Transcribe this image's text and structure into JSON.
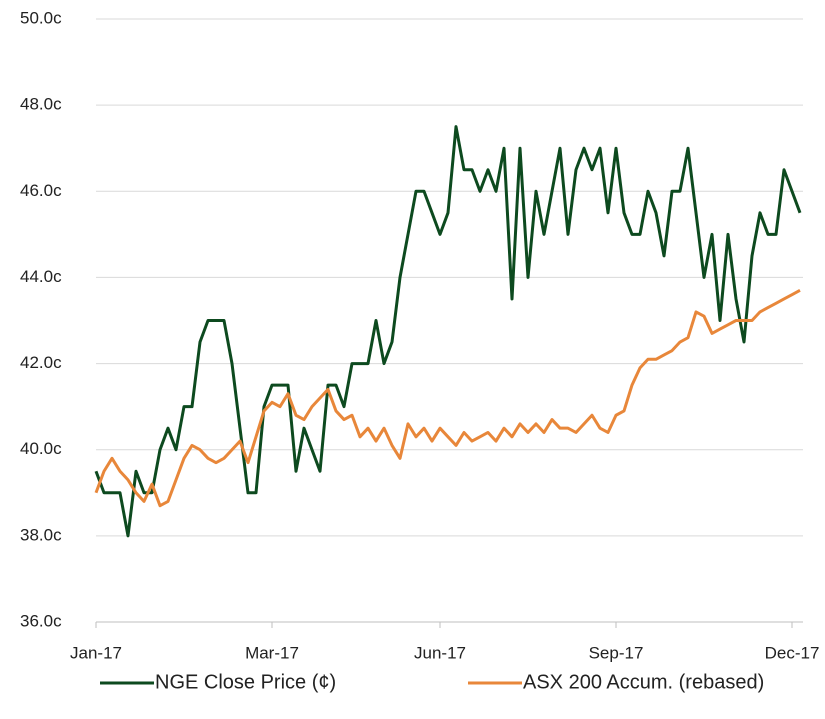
{
  "chart_data": {
    "type": "line",
    "categories": [
      "Jan-17",
      null,
      null,
      null,
      null,
      null,
      null,
      null,
      null,
      null,
      null,
      null,
      null,
      null,
      null,
      null,
      null,
      null,
      null,
      null,
      null,
      null,
      "Mar-17",
      null,
      null,
      null,
      null,
      null,
      null,
      null,
      null,
      null,
      null,
      null,
      null,
      null,
      null,
      null,
      null,
      null,
      null,
      null,
      null,
      "Jun-17",
      null,
      null,
      null,
      null,
      null,
      null,
      null,
      null,
      null,
      null,
      null,
      null,
      null,
      null,
      null,
      null,
      null,
      null,
      null,
      null,
      null,
      "Sep-17",
      null,
      null,
      null,
      null,
      null,
      null,
      null,
      null,
      null,
      null,
      null,
      null,
      null,
      null,
      null,
      null,
      null,
      null,
      null,
      null,
      null,
      "Dec-17",
      null
    ],
    "series": [
      {
        "name": "NGE Close Price (¢)",
        "color": "#0d4a1f",
        "values": [
          39.5,
          39.0,
          39.0,
          39.0,
          38.0,
          39.5,
          39.0,
          39.0,
          40.0,
          40.5,
          40.0,
          41.0,
          41.0,
          42.5,
          43.0,
          43.0,
          43.0,
          42.0,
          40.5,
          39.0,
          39.0,
          41.0,
          41.5,
          41.5,
          41.5,
          39.5,
          40.5,
          40.0,
          39.5,
          41.5,
          41.5,
          41.0,
          42.0,
          42.0,
          42.0,
          43.0,
          42.0,
          42.5,
          44.0,
          45.0,
          46.0,
          46.0,
          45.5,
          45.0,
          45.5,
          47.5,
          46.5,
          46.5,
          46.0,
          46.5,
          46.0,
          47.0,
          43.5,
          47.0,
          44.0,
          46.0,
          45.0,
          46.0,
          47.0,
          45.0,
          46.5,
          47.0,
          46.5,
          47.0,
          45.5,
          47.0,
          45.5,
          45.0,
          45.0,
          46.0,
          45.5,
          44.5,
          46.0,
          46.0,
          47.0,
          45.5,
          44.0,
          45.0,
          43.0,
          45.0,
          43.5,
          42.5,
          44.5,
          45.5,
          45.0,
          45.0,
          46.5,
          46.0,
          45.5
        ]
      },
      {
        "name": "ASX 200 Accum. (rebased)",
        "color": "#e8873a",
        "values": [
          39.0,
          39.5,
          39.8,
          39.5,
          39.3,
          39.0,
          38.8,
          39.2,
          38.7,
          38.8,
          39.3,
          39.8,
          40.1,
          40.0,
          39.8,
          39.7,
          39.8,
          40.0,
          40.2,
          39.7,
          40.3,
          40.9,
          41.1,
          41.0,
          41.3,
          40.8,
          40.7,
          41.0,
          41.2,
          41.4,
          40.9,
          40.7,
          40.8,
          40.3,
          40.5,
          40.2,
          40.5,
          40.1,
          39.8,
          40.6,
          40.3,
          40.5,
          40.2,
          40.5,
          40.3,
          40.1,
          40.4,
          40.2,
          40.3,
          40.4,
          40.2,
          40.5,
          40.3,
          40.6,
          40.4,
          40.6,
          40.4,
          40.7,
          40.5,
          40.5,
          40.4,
          40.6,
          40.8,
          40.5,
          40.4,
          40.8,
          40.9,
          41.5,
          41.9,
          42.1,
          42.1,
          42.2,
          42.3,
          42.5,
          42.6,
          43.2,
          43.1,
          42.7,
          42.8,
          42.9,
          43.0,
          43.0,
          43.0,
          43.2,
          43.3,
          43.4,
          43.5,
          43.6,
          43.7
        ]
      }
    ],
    "ylim": [
      36,
      50
    ],
    "yticks": [
      {
        "value": 36,
        "label": "36.0c"
      },
      {
        "value": 38,
        "label": "38.0c"
      },
      {
        "value": 40,
        "label": "40.0c"
      },
      {
        "value": 42,
        "label": "42.0c"
      },
      {
        "value": 44,
        "label": "44.0c"
      },
      {
        "value": 46,
        "label": "46.0c"
      },
      {
        "value": 48,
        "label": "48.0c"
      },
      {
        "value": 50,
        "label": "50.0c"
      }
    ],
    "grid": true,
    "legend": "bottom"
  }
}
